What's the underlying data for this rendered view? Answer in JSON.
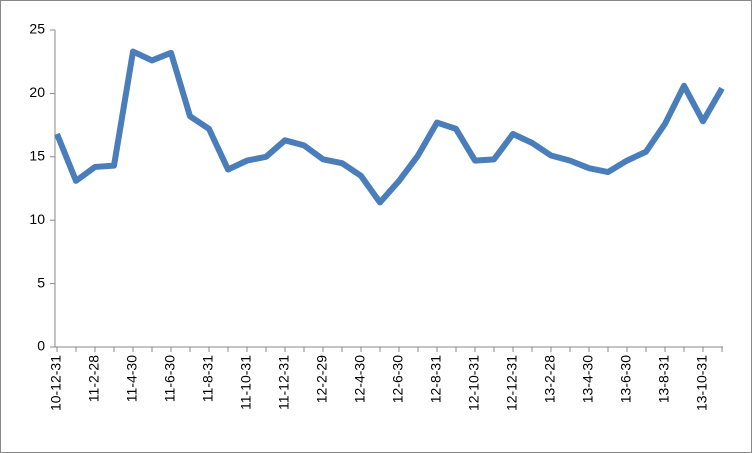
{
  "chart_data": {
    "type": "line",
    "categories": [
      "10-12-31",
      null,
      "11-2-28",
      null,
      "11-4-30",
      null,
      "11-6-30",
      null,
      "11-8-31",
      null,
      "11-10-31",
      null,
      "11-12-31",
      null,
      "12-2-29",
      null,
      "12-4-30",
      null,
      "12-6-30",
      null,
      "12-8-31",
      null,
      "12-10-31",
      null,
      "12-12-31",
      null,
      "13-2-28",
      null,
      "13-4-30",
      null,
      "13-6-30",
      null,
      "13-8-31",
      null,
      "13-10-31",
      null
    ],
    "values": [
      16.8,
      13.1,
      14.2,
      14.3,
      23.3,
      22.6,
      23.2,
      18.2,
      17.2,
      14.0,
      14.7,
      15.0,
      16.3,
      15.9,
      14.8,
      14.5,
      13.5,
      11.4,
      13.1,
      15.1,
      17.7,
      17.2,
      14.7,
      14.8,
      16.8,
      16.1,
      15.1,
      14.7,
      14.1,
      13.8,
      14.7,
      15.4,
      17.6,
      20.6,
      17.8,
      20.4
    ],
    "color": "#4a7ebb",
    "ylim": [
      0,
      25
    ],
    "yticks": [
      0,
      5,
      10,
      15,
      20,
      25
    ],
    "grid": false
  }
}
